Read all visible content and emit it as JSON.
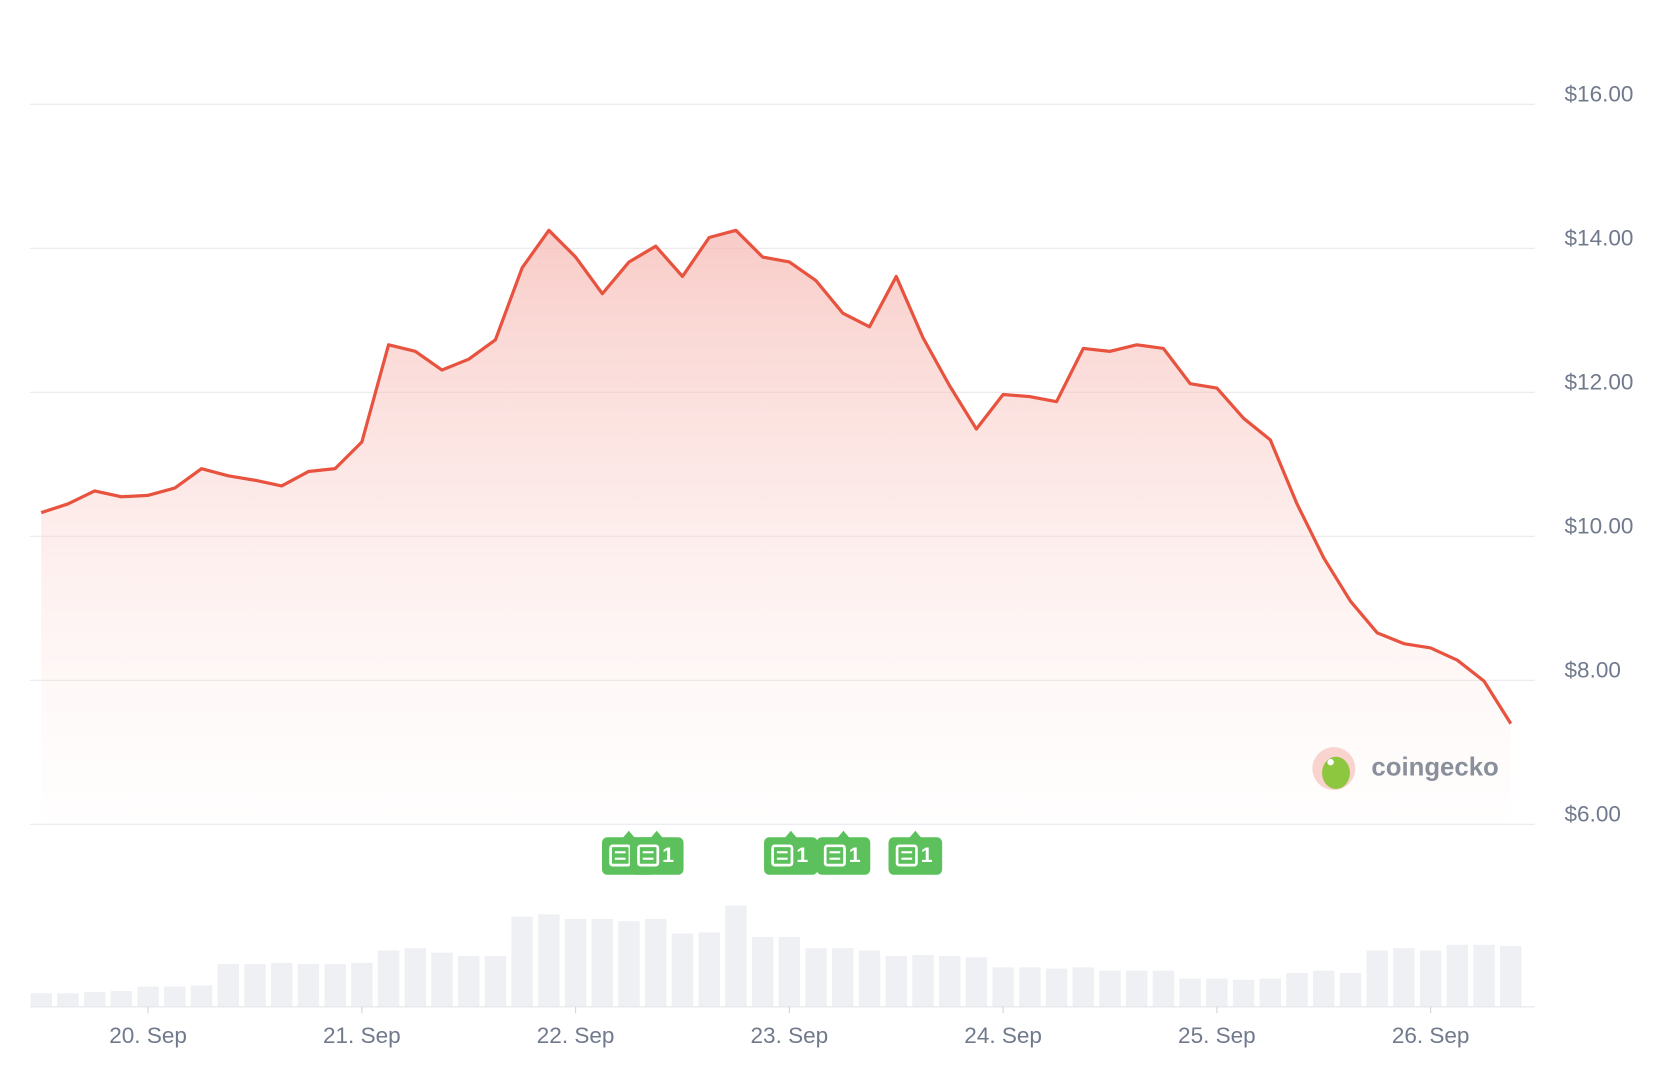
{
  "chart_data": {
    "type": "line",
    "categories": [
      null,
      null,
      null,
      null,
      "20. Sep",
      null,
      null,
      null,
      null,
      null,
      null,
      null,
      "21. Sep",
      null,
      null,
      null,
      null,
      null,
      null,
      null,
      "22. Sep",
      null,
      null,
      null,
      null,
      null,
      null,
      null,
      "23. Sep",
      null,
      null,
      null,
      null,
      null,
      null,
      null,
      "24. Sep",
      null,
      null,
      null,
      null,
      null,
      null,
      null,
      "25. Sep",
      null,
      null,
      null,
      null,
      null,
      null,
      null,
      "26. Sep",
      null,
      null,
      null
    ],
    "series": [
      {
        "color": "#e8533f",
        "values": [
          10.33,
          10.45,
          10.63,
          10.55,
          10.57,
          10.67,
          10.94,
          10.84,
          10.78,
          10.7,
          10.9,
          10.94,
          11.31,
          12.66,
          12.57,
          12.31,
          12.46,
          12.73,
          13.73,
          14.25,
          13.88,
          13.37,
          13.81,
          14.03,
          13.61,
          14.15,
          14.25,
          13.88,
          13.81,
          13.55,
          13.1,
          12.91,
          13.61,
          12.76,
          12.09,
          11.49,
          11.97,
          11.94,
          11.87,
          12.61,
          12.57,
          12.66,
          12.61,
          12.12,
          12.06,
          11.64,
          11.34,
          10.45,
          9.7,
          9.1,
          8.66,
          8.51,
          8.45,
          8.28,
          7.99,
          7.4
        ]
      }
    ],
    "volume": [
      12,
      12,
      13,
      14,
      18,
      18,
      19,
      38,
      38,
      39,
      38,
      38,
      39,
      50,
      52,
      48,
      45,
      45,
      80,
      82,
      78,
      78,
      76,
      78,
      65,
      66,
      90,
      62,
      62,
      52,
      52,
      50,
      45,
      46,
      45,
      44,
      35,
      35,
      34,
      35,
      32,
      32,
      32,
      25,
      25,
      24,
      25,
      30,
      32,
      30,
      50,
      52,
      50,
      55,
      55,
      54
    ],
    "ylim": [
      6,
      16
    ],
    "yticks": [
      {
        "value": 6,
        "label": "$6.00"
      },
      {
        "value": 8,
        "label": "$8.00"
      },
      {
        "value": 10,
        "label": "$10.00"
      },
      {
        "value": 12,
        "label": "$12.00"
      },
      {
        "value": 14,
        "label": "$14.00"
      },
      {
        "value": 16,
        "label": "$16.00"
      }
    ],
    "grid": true,
    "events": [
      {
        "label": "1"
      },
      {
        "label": "1"
      },
      {
        "label": "1"
      },
      {
        "label": "1"
      },
      {
        "label": "1"
      }
    ],
    "watermark": "coingecko"
  }
}
